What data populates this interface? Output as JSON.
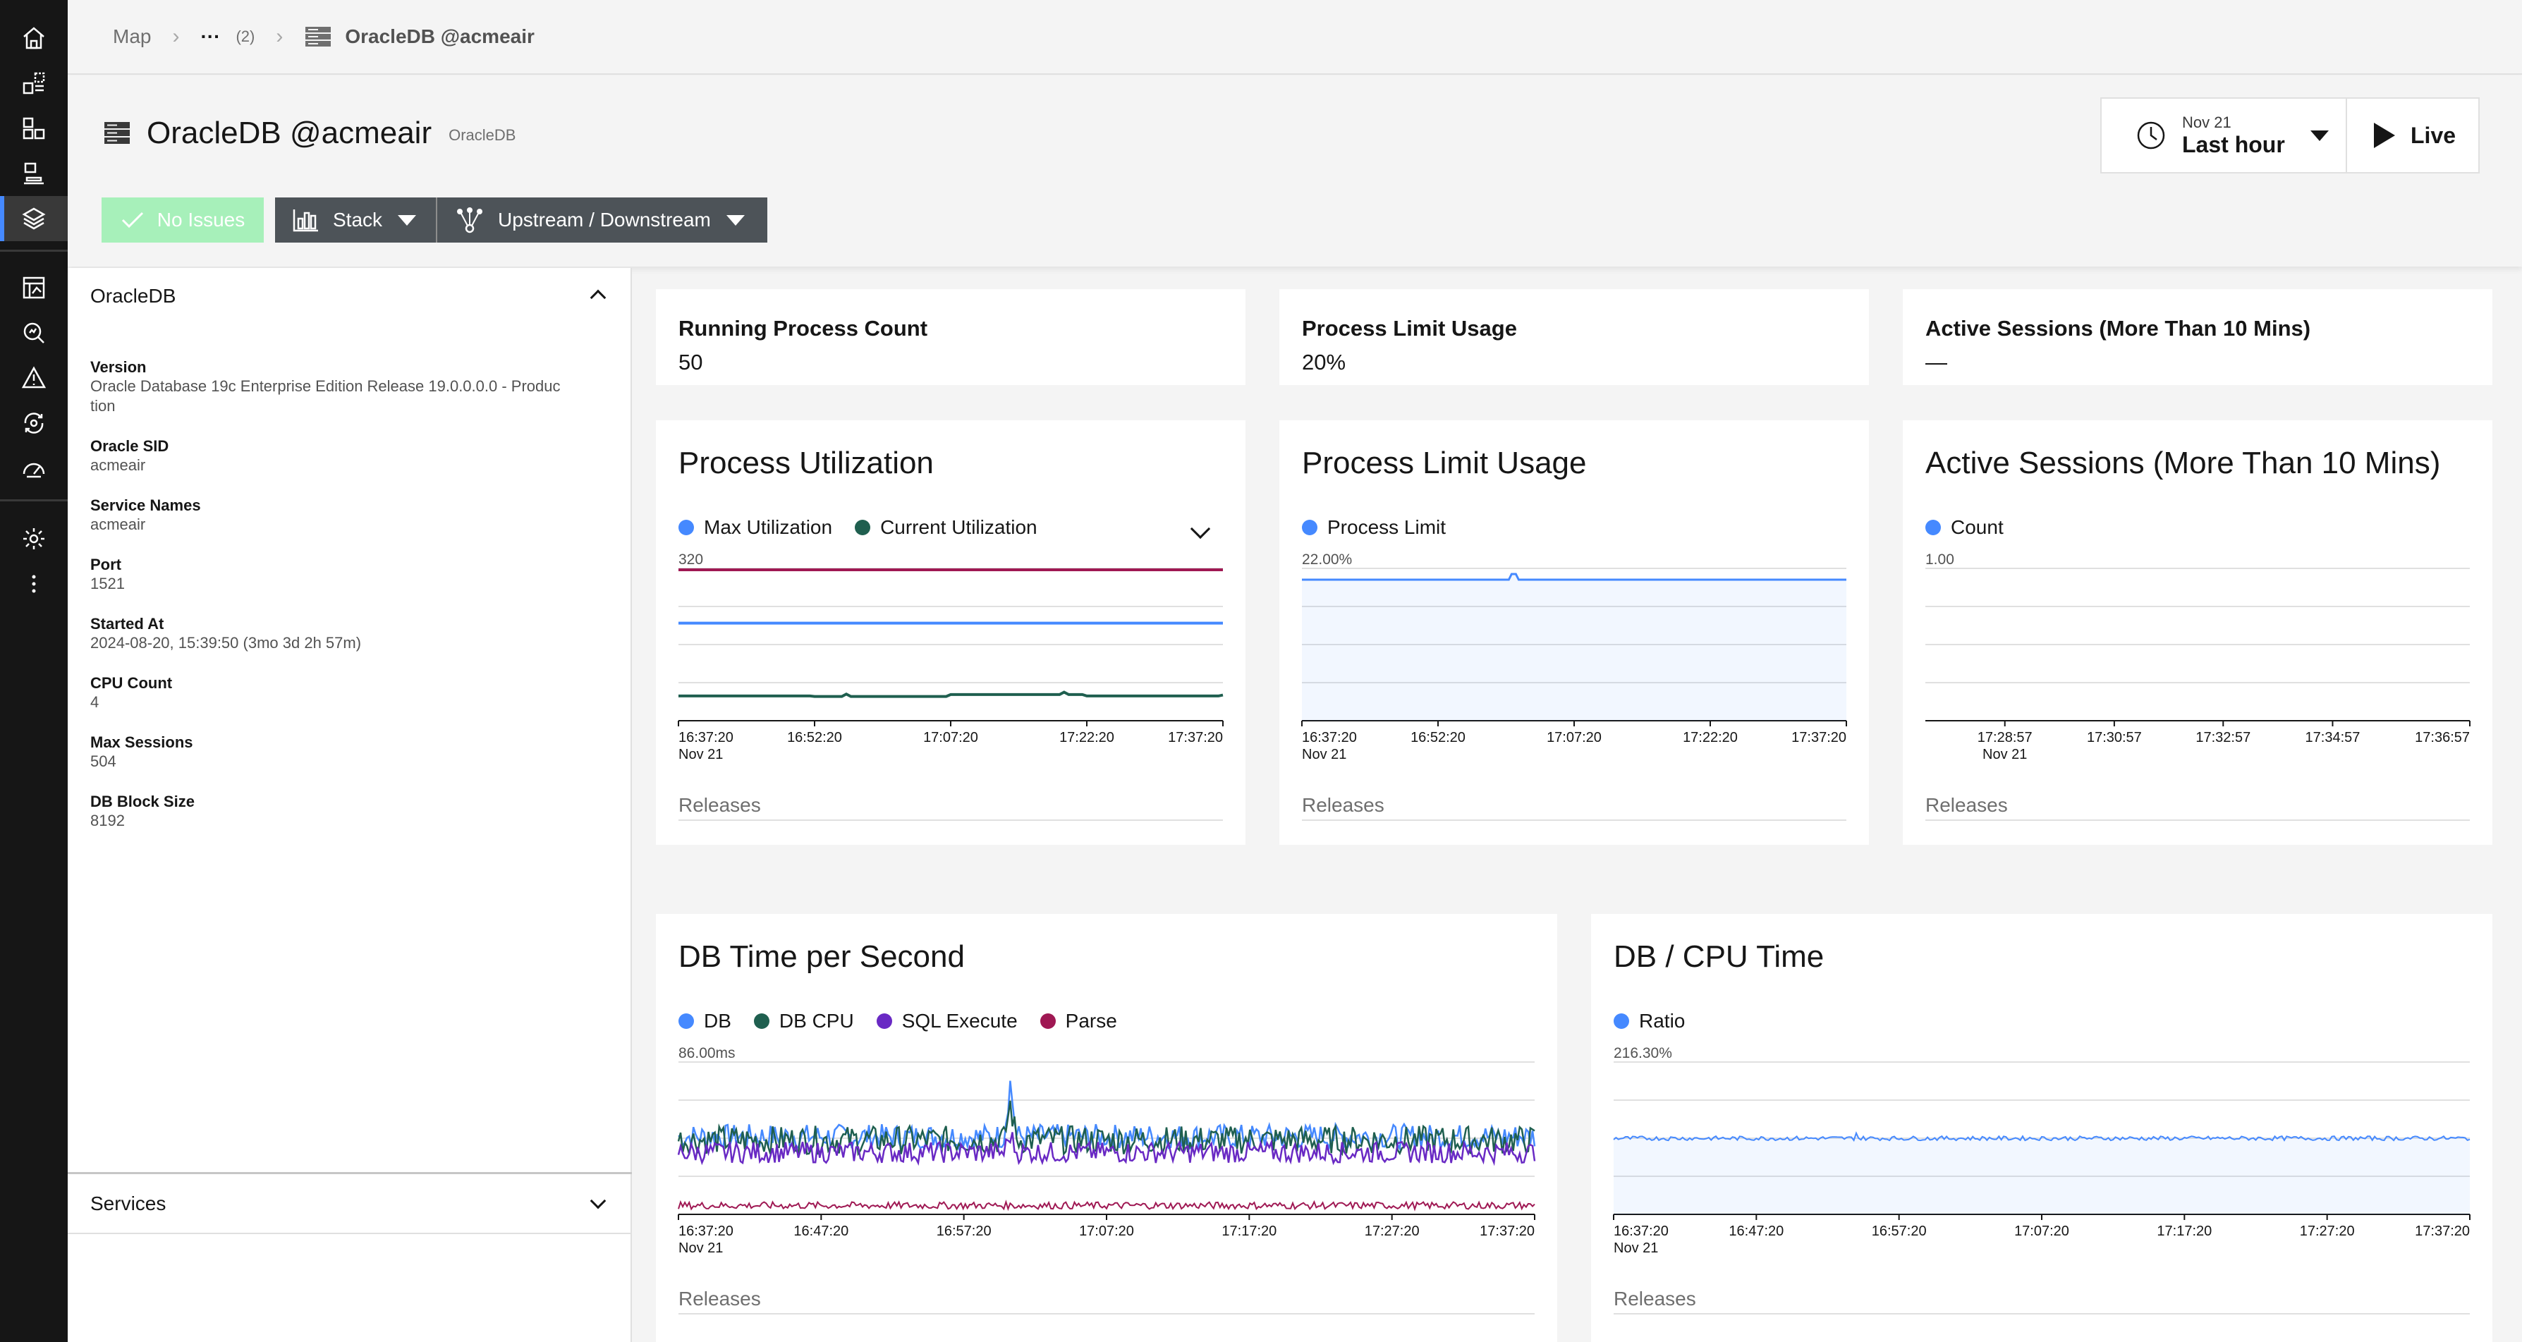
{
  "nav": {
    "icons": [
      "home-icon",
      "dashboard-icon",
      "application-icon",
      "infrastructure-icon",
      "stack-icon",
      "analytics-icon",
      "search-analyze-icon",
      "alert-icon",
      "automation-icon",
      "speedometer-icon",
      "settings-icon",
      "overflow-menu-icon"
    ],
    "active": "stack-icon"
  },
  "breadcrumb": {
    "root": "Map",
    "ellipsis": "···",
    "count": "(2)",
    "current": "OracleDB @acmeair"
  },
  "header": {
    "title": "OracleDB @acmeair",
    "entity_type": "OracleDB",
    "no_issues_label": "No Issues",
    "stack_label": "Stack",
    "updown_label": "Upstream / Downstream",
    "time_date": "Nov 21",
    "time_range": "Last hour",
    "live_label": "Live"
  },
  "info": {
    "section_title": "OracleDB",
    "properties": [
      {
        "label": "Version",
        "value": "Oracle Database 19c Enterprise Edition Release 19.0.0.0.0 - Produc",
        "value2": "tion"
      },
      {
        "label": "Oracle SID",
        "value": "acmeair"
      },
      {
        "label": "Service Names",
        "value": "acmeair"
      },
      {
        "label": "Port",
        "value": "1521"
      },
      {
        "label": "Started At",
        "value": "2024-08-20, 15:39:50 (3mo 3d 2h 57m)"
      },
      {
        "label": "CPU Count",
        "value": "4"
      },
      {
        "label": "Max Sessions",
        "value": "504"
      },
      {
        "label": "DB Block Size",
        "value": "8192"
      }
    ],
    "services_title": "Services"
  },
  "metrics": [
    {
      "label": "Running Process Count",
      "value": "50"
    },
    {
      "label": "Process Limit Usage",
      "value": "20%"
    },
    {
      "label": "Active Sessions (More Than 10 Mins)",
      "value": "—"
    }
  ],
  "releases_label": "Releases",
  "colors": {
    "blue": "#4589ff",
    "teal": "#1f5f4f",
    "purple": "#6929c4",
    "magenta": "#9f1853"
  },
  "chart_data": [
    {
      "type": "line",
      "title": "Process Utilization",
      "ymax_label": "320",
      "ylim": [
        0,
        320
      ],
      "x_ticks": [
        "16:37:20",
        "16:52:20",
        "17:07:20",
        "17:22:20",
        "17:37:20"
      ],
      "x_sub": "Nov 21",
      "series": [
        {
          "name": "Max Utilization",
          "color": "#4589ff",
          "values": [
            205,
            205,
            205,
            205,
            205
          ]
        },
        {
          "name": "Current Utilization",
          "color": "#1f5f4f",
          "values": [
            52,
            51,
            55,
            52,
            54
          ]
        }
      ],
      "extra_line": {
        "color": "#9f1853",
        "value": 320
      }
    },
    {
      "type": "area",
      "title": "Process Limit Usage",
      "ymax_label": "22.00%",
      "x_ticks": [
        "16:37:20",
        "16:52:20",
        "17:07:20",
        "17:22:20",
        "17:37:20"
      ],
      "x_sub": "Nov 21",
      "series": [
        {
          "name": "Process Limit",
          "color": "#4589ff",
          "values": [
            20,
            20,
            20,
            20,
            20
          ]
        }
      ]
    },
    {
      "type": "line",
      "title": "Active Sessions (More Than 10 Mins)",
      "ymax_label": "1.00",
      "x_ticks": [
        "17:28:57",
        "17:30:57",
        "17:32:57",
        "17:34:57",
        "17:36:57"
      ],
      "x_sub": "Nov 21",
      "series": [
        {
          "name": "Count",
          "color": "#4589ff",
          "values": []
        }
      ]
    },
    {
      "type": "area",
      "title": "DB Time per Second",
      "ymax_label": "86.00ms",
      "x_ticks": [
        "16:37:20",
        "16:47:20",
        "16:57:20",
        "17:07:20",
        "17:17:20",
        "17:27:20",
        "17:37:20"
      ],
      "x_sub": "Nov 21",
      "series": [
        {
          "name": "DB",
          "color": "#4589ff",
          "values": [
            42,
            45,
            43,
            44,
            46,
            43,
            45
          ]
        },
        {
          "name": "DB CPU",
          "color": "#1f5f4f",
          "values": [
            40,
            43,
            41,
            42,
            44,
            41,
            43
          ]
        },
        {
          "name": "SQL Execute",
          "color": "#6929c4",
          "values": [
            34,
            36,
            35,
            35,
            37,
            34,
            36
          ]
        },
        {
          "name": "Parse",
          "color": "#9f1853",
          "values": [
            4,
            5,
            4,
            5,
            4,
            5,
            4
          ]
        }
      ]
    },
    {
      "type": "area",
      "title": "DB / CPU Time",
      "ymax_label": "216.30%",
      "x_ticks": [
        "16:37:20",
        "16:47:20",
        "16:57:20",
        "17:07:20",
        "17:17:20",
        "17:27:20",
        "17:37:20"
      ],
      "x_sub": "Nov 21",
      "series": [
        {
          "name": "Ratio",
          "color": "#4589ff",
          "values": [
            108,
            109,
            108,
            110,
            108,
            109,
            108
          ]
        }
      ]
    }
  ]
}
